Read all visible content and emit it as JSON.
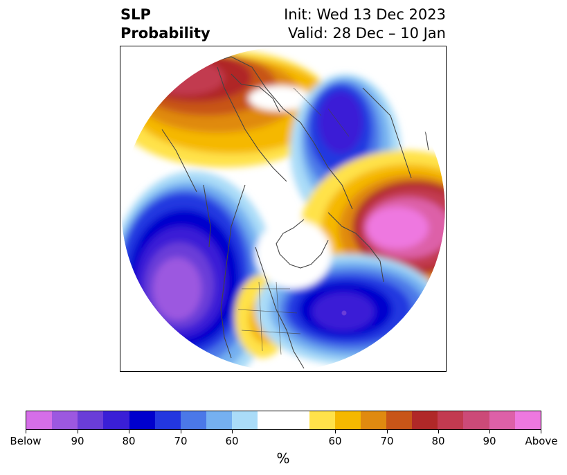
{
  "title": {
    "left_line1": "SLP",
    "left_line2": "Probability",
    "right_line1": "Init: Wed 13 Dec 2023",
    "right_line2": "Valid: 28 Dec – 10 Jan"
  },
  "map": {
    "projection": "north-polar-stereographic",
    "coastline_color": "#444444"
  },
  "colorbar": {
    "colors": [
      "#d56ee8",
      "#9c58e0",
      "#6a3dd8",
      "#3a1fd6",
      "#0000cd",
      "#2337e0",
      "#4b78e8",
      "#75b0f0",
      "#aadcf8",
      "#ffffff",
      "#ffe24a",
      "#f5b800",
      "#e08a10",
      "#c85518",
      "#b02828",
      "#c23a50",
      "#cc4a78",
      "#dd60a8",
      "#ee78e0"
    ],
    "tick_labels": [
      "Below",
      "90",
      "80",
      "70",
      "60",
      "60",
      "70",
      "80",
      "90",
      "Above"
    ],
    "unit": "%"
  }
}
